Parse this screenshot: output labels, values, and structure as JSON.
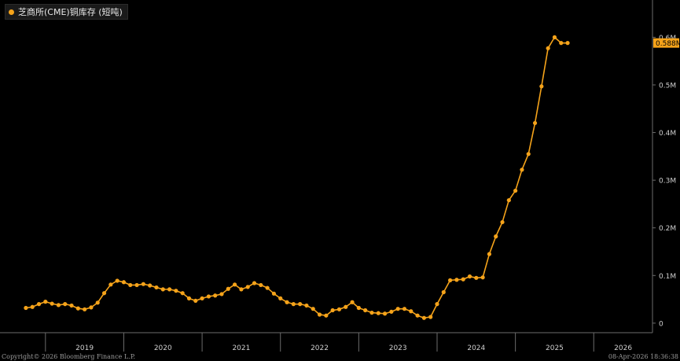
{
  "colors": {
    "line": "#f5a31a",
    "background": "#000000",
    "axis": "#6b6b6b",
    "text": "#cfcfcf"
  },
  "legend": {
    "label": "芝商所(CME)铜库存 (短吨)"
  },
  "last_value_label": "0.588M",
  "footer": {
    "copyright": "Copyright© 2026 Bloomberg Finance L.P.",
    "timestamp": "08-Apr-2026 18:36:38"
  },
  "chart_data": {
    "type": "line",
    "title": "",
    "series": [
      {
        "name": "芝商所(CME)铜库存 (短吨)",
        "points": [
          [
            "2018-10",
            0.032
          ],
          [
            "2018-11",
            0.034
          ],
          [
            "2018-12",
            0.04
          ],
          [
            "2019-01",
            0.045
          ],
          [
            "2019-02",
            0.041
          ],
          [
            "2019-03",
            0.038
          ],
          [
            "2019-04",
            0.04
          ],
          [
            "2019-05",
            0.037
          ],
          [
            "2019-06",
            0.031
          ],
          [
            "2019-07",
            0.029
          ],
          [
            "2019-08",
            0.033
          ],
          [
            "2019-09",
            0.043
          ],
          [
            "2019-10",
            0.063
          ],
          [
            "2019-11",
            0.081
          ],
          [
            "2019-12",
            0.089
          ],
          [
            "2020-01",
            0.086
          ],
          [
            "2020-02",
            0.08
          ],
          [
            "2020-03",
            0.08
          ],
          [
            "2020-04",
            0.082
          ],
          [
            "2020-05",
            0.079
          ],
          [
            "2020-06",
            0.075
          ],
          [
            "2020-07",
            0.071
          ],
          [
            "2020-08",
            0.071
          ],
          [
            "2020-09",
            0.068
          ],
          [
            "2020-10",
            0.063
          ],
          [
            "2020-11",
            0.052
          ],
          [
            "2020-12",
            0.047
          ],
          [
            "2021-01",
            0.052
          ],
          [
            "2021-02",
            0.056
          ],
          [
            "2021-03",
            0.058
          ],
          [
            "2021-04",
            0.061
          ],
          [
            "2021-05",
            0.072
          ],
          [
            "2021-06",
            0.081
          ],
          [
            "2021-07",
            0.071
          ],
          [
            "2021-08",
            0.076
          ],
          [
            "2021-09",
            0.084
          ],
          [
            "2021-10",
            0.08
          ],
          [
            "2021-11",
            0.074
          ],
          [
            "2021-12",
            0.062
          ],
          [
            "2022-01",
            0.052
          ],
          [
            "2022-02",
            0.044
          ],
          [
            "2022-03",
            0.04
          ],
          [
            "2022-04",
            0.04
          ],
          [
            "2022-05",
            0.037
          ],
          [
            "2022-06",
            0.03
          ],
          [
            "2022-07",
            0.018
          ],
          [
            "2022-08",
            0.016
          ],
          [
            "2022-09",
            0.027
          ],
          [
            "2022-10",
            0.029
          ],
          [
            "2022-11",
            0.034
          ],
          [
            "2022-12",
            0.044
          ],
          [
            "2023-01",
            0.032
          ],
          [
            "2023-02",
            0.027
          ],
          [
            "2023-03",
            0.022
          ],
          [
            "2023-04",
            0.021
          ],
          [
            "2023-05",
            0.02
          ],
          [
            "2023-06",
            0.024
          ],
          [
            "2023-07",
            0.03
          ],
          [
            "2023-08",
            0.03
          ],
          [
            "2023-09",
            0.025
          ],
          [
            "2023-10",
            0.016
          ],
          [
            "2023-11",
            0.011
          ],
          [
            "2023-12",
            0.013
          ],
          [
            "2024-01",
            0.04
          ],
          [
            "2024-02",
            0.065
          ],
          [
            "2024-03",
            0.09
          ],
          [
            "2024-04",
            0.091
          ],
          [
            "2024-05",
            0.092
          ],
          [
            "2024-06",
            0.098
          ],
          [
            "2024-07",
            0.095
          ],
          [
            "2024-08",
            0.096
          ],
          [
            "2024-09",
            0.145
          ],
          [
            "2024-10",
            0.182
          ],
          [
            "2024-11",
            0.212
          ],
          [
            "2024-12",
            0.258
          ],
          [
            "2025-01",
            0.278
          ],
          [
            "2025-02",
            0.322
          ],
          [
            "2025-03",
            0.355
          ],
          [
            "2025-04",
            0.42
          ],
          [
            "2025-05",
            0.497
          ],
          [
            "2025-06",
            0.577
          ],
          [
            "2025-07",
            0.6
          ],
          [
            "2025-08",
            0.588
          ],
          [
            "2025-09",
            0.588
          ]
        ]
      }
    ],
    "x_range": [
      "2018-07",
      "2026-10"
    ],
    "x_year_labels": [
      "2019",
      "2020",
      "2021",
      "2022",
      "2023",
      "2024",
      "2025",
      "2026"
    ],
    "y_range": [
      -0.02,
      0.665
    ],
    "y_ticks": [
      {
        "value": 0,
        "label": "0"
      },
      {
        "value": 0.1,
        "label": "0.1M"
      },
      {
        "value": 0.2,
        "label": "0.2M"
      },
      {
        "value": 0.3,
        "label": "0.3M"
      },
      {
        "value": 0.4,
        "label": "0.4M"
      },
      {
        "value": 0.5,
        "label": "0.5M"
      },
      {
        "value": 0.6,
        "label": "0.6M"
      }
    ],
    "y_axis_side": "right",
    "grid": false,
    "legend_position": "top-left"
  }
}
